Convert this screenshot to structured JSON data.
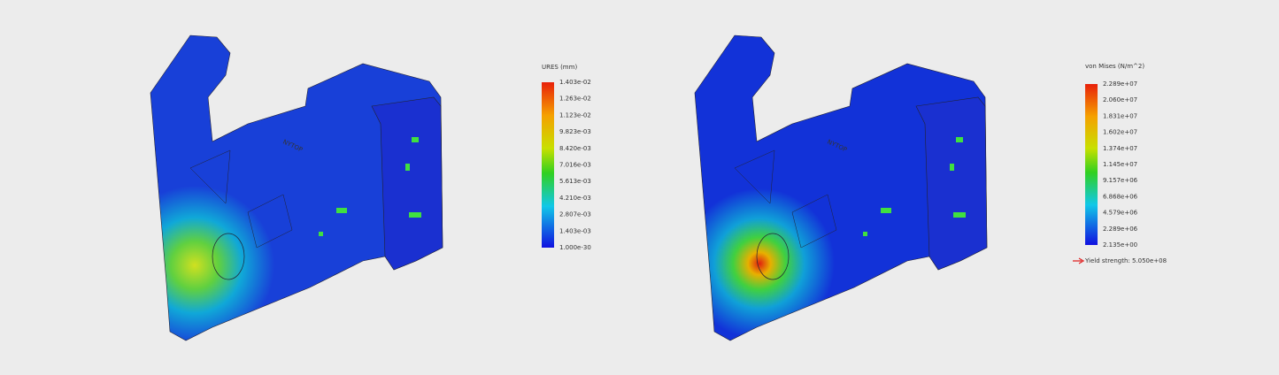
{
  "views": [
    {
      "part_label": "NYTOP",
      "legend": {
        "title": "URES (mm)",
        "labels": [
          "1.403e-02",
          "1.263e-02",
          "1.123e-02",
          "9.823e-03",
          "8.420e-03",
          "7.016e-03",
          "5.613e-03",
          "4.210e-03",
          "2.807e-03",
          "1.403e-03",
          "1.000e-30"
        ]
      }
    },
    {
      "part_label": "NYTOP",
      "legend": {
        "title": "von Mises (N/m^2)",
        "labels": [
          "2.289e+07",
          "2.060e+07",
          "1.831e+07",
          "1.602e+07",
          "1.374e+07",
          "1.145e+07",
          "9.157e+06",
          "6.868e+06",
          "4.579e+06",
          "2.289e+06",
          "2.135e+00"
        ],
        "yield": "Yield strength: 5.050e+08"
      }
    }
  ]
}
